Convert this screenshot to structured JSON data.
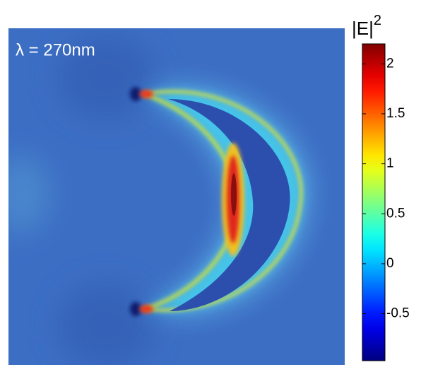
{
  "chart_data": {
    "type": "heatmap",
    "annotation": "λ = 270nm",
    "colorbar_label": {
      "base": "|E|",
      "superscript": "2"
    },
    "colormap": "jet",
    "clim": [
      -0.97,
      2.2
    ],
    "cticks": [
      -0.5,
      0,
      0.5,
      1,
      1.5,
      2
    ]
  }
}
